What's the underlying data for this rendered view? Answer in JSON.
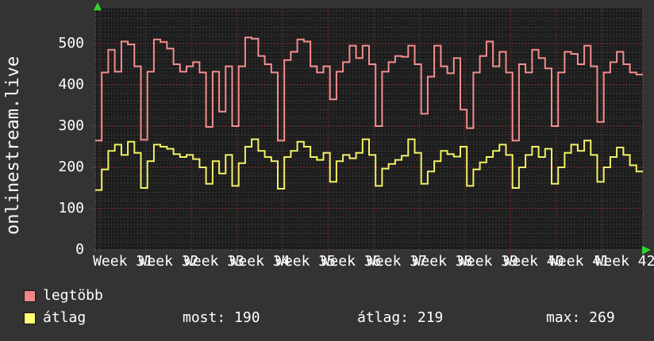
{
  "app": {
    "vertical_title": "onlinestream.live"
  },
  "colors": {
    "outer_bg": "#333333",
    "plot_bg": "#1d1d1d",
    "minor_grid": "#4a4a4a",
    "major_grid_red": "#b23535",
    "week_line_red": "#a03232",
    "series_max": "#f58e8e",
    "series_avg": "#f2f266",
    "legend_max_box": "#f28585",
    "legend_avg_box": "#ffff73",
    "arrow_green": "#2fd42f",
    "text": "#ffffff"
  },
  "chart_data": {
    "type": "line",
    "line_mode": "step",
    "title": "",
    "xlabel": "",
    "ylabel": "",
    "x_axis_labels": [
      "Week 31",
      "Week 32",
      "Week 33",
      "Week 34",
      "Week 35",
      "Week 36",
      "Week 37",
      "Week 38",
      "Week 39",
      "Week 40",
      "Week 41",
      "Week 42"
    ],
    "y_ticks": [
      0,
      100,
      200,
      300,
      400,
      500
    ],
    "ylim": [
      0,
      586
    ],
    "x_unit": "day",
    "days_shown": 84,
    "grid": "dotted minor (half-day / 20 units) + red dotted major (weekly / 100 units)",
    "legend_position": "bottom-left",
    "series": [
      {
        "name": "legtöbb",
        "values": [
          265,
          430,
          485,
          432,
          505,
          498,
          445,
          267,
          432,
          510,
          504,
          488,
          450,
          432,
          445,
          455,
          430,
          298,
          432,
          335,
          445,
          300,
          445,
          515,
          512,
          470,
          450,
          430,
          265,
          460,
          480,
          510,
          505,
          445,
          430,
          445,
          365,
          432,
          455,
          495,
          465,
          495,
          450,
          300,
          432,
          455,
          470,
          468,
          495,
          450,
          330,
          420,
          495,
          445,
          428,
          465,
          340,
          295,
          430,
          470,
          505,
          445,
          480,
          430,
          265,
          450,
          430,
          485,
          465,
          440,
          300,
          430,
          480,
          475,
          450,
          495,
          445,
          310,
          430,
          455,
          480,
          450,
          430,
          425
        ]
      },
      {
        "name": "átlag",
        "values": [
          145,
          195,
          240,
          255,
          230,
          262,
          235,
          150,
          215,
          255,
          250,
          245,
          232,
          225,
          230,
          220,
          200,
          160,
          215,
          185,
          230,
          155,
          210,
          250,
          268,
          240,
          225,
          215,
          148,
          225,
          240,
          262,
          250,
          225,
          218,
          235,
          165,
          215,
          230,
          222,
          235,
          268,
          230,
          155,
          197,
          208,
          218,
          228,
          268,
          235,
          160,
          190,
          215,
          240,
          232,
          226,
          250,
          155,
          195,
          212,
          225,
          240,
          255,
          230,
          150,
          200,
          230,
          250,
          225,
          245,
          160,
          200,
          235,
          255,
          240,
          265,
          230,
          165,
          200,
          225,
          248,
          230,
          205,
          190
        ]
      }
    ]
  },
  "legend": {
    "items": [
      {
        "label": "legtöbb"
      },
      {
        "label": "átlag"
      }
    ]
  },
  "stats": {
    "most": "most: 190",
    "atlag": "átlag: 219",
    "max": "max: 269"
  }
}
